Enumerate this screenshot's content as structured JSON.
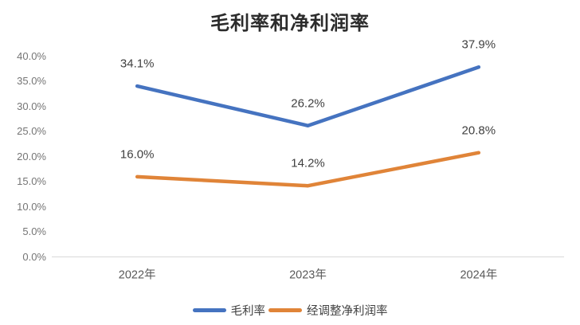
{
  "chart_data": {
    "type": "line",
    "title": "毛利率和净利润率",
    "categories": [
      "2022年",
      "2023年",
      "2024年"
    ],
    "series": [
      {
        "name": "毛利率",
        "color": "#4573C0",
        "values": [
          34.1,
          26.2,
          37.9
        ],
        "data_labels": [
          "34.1%",
          "26.2%",
          "37.9%"
        ]
      },
      {
        "name": "经调整净利润率",
        "color": "#E08438",
        "values": [
          16.0,
          14.2,
          20.8
        ],
        "data_labels": [
          "16.0%",
          "14.2%",
          "20.8%"
        ]
      }
    ],
    "xlabel": "",
    "ylabel": "",
    "ylim": [
      0,
      40
    ],
    "yticks": [
      {
        "value": 0,
        "label": "0.0%"
      },
      {
        "value": 5,
        "label": "5.0%"
      },
      {
        "value": 10,
        "label": "10.0%"
      },
      {
        "value": 15,
        "label": "15.0%"
      },
      {
        "value": 20,
        "label": "20.0%"
      },
      {
        "value": 25,
        "label": "25.0%"
      },
      {
        "value": 30,
        "label": "30.0%"
      },
      {
        "value": 35,
        "label": "35.0%"
      },
      {
        "value": 40,
        "label": "40.0%"
      }
    ],
    "grid": false,
    "legend_position": "bottom"
  },
  "colors": {
    "series_gross_margin": "#4573C0",
    "series_adjusted_net_margin": "#E08438",
    "axis_line": "#D9D9D9",
    "tick_label_text": "#757575",
    "category_label_text": "#595959",
    "data_label_text": "#404040",
    "title_text": "#2B2B2B",
    "background": "#FFFFFF"
  }
}
